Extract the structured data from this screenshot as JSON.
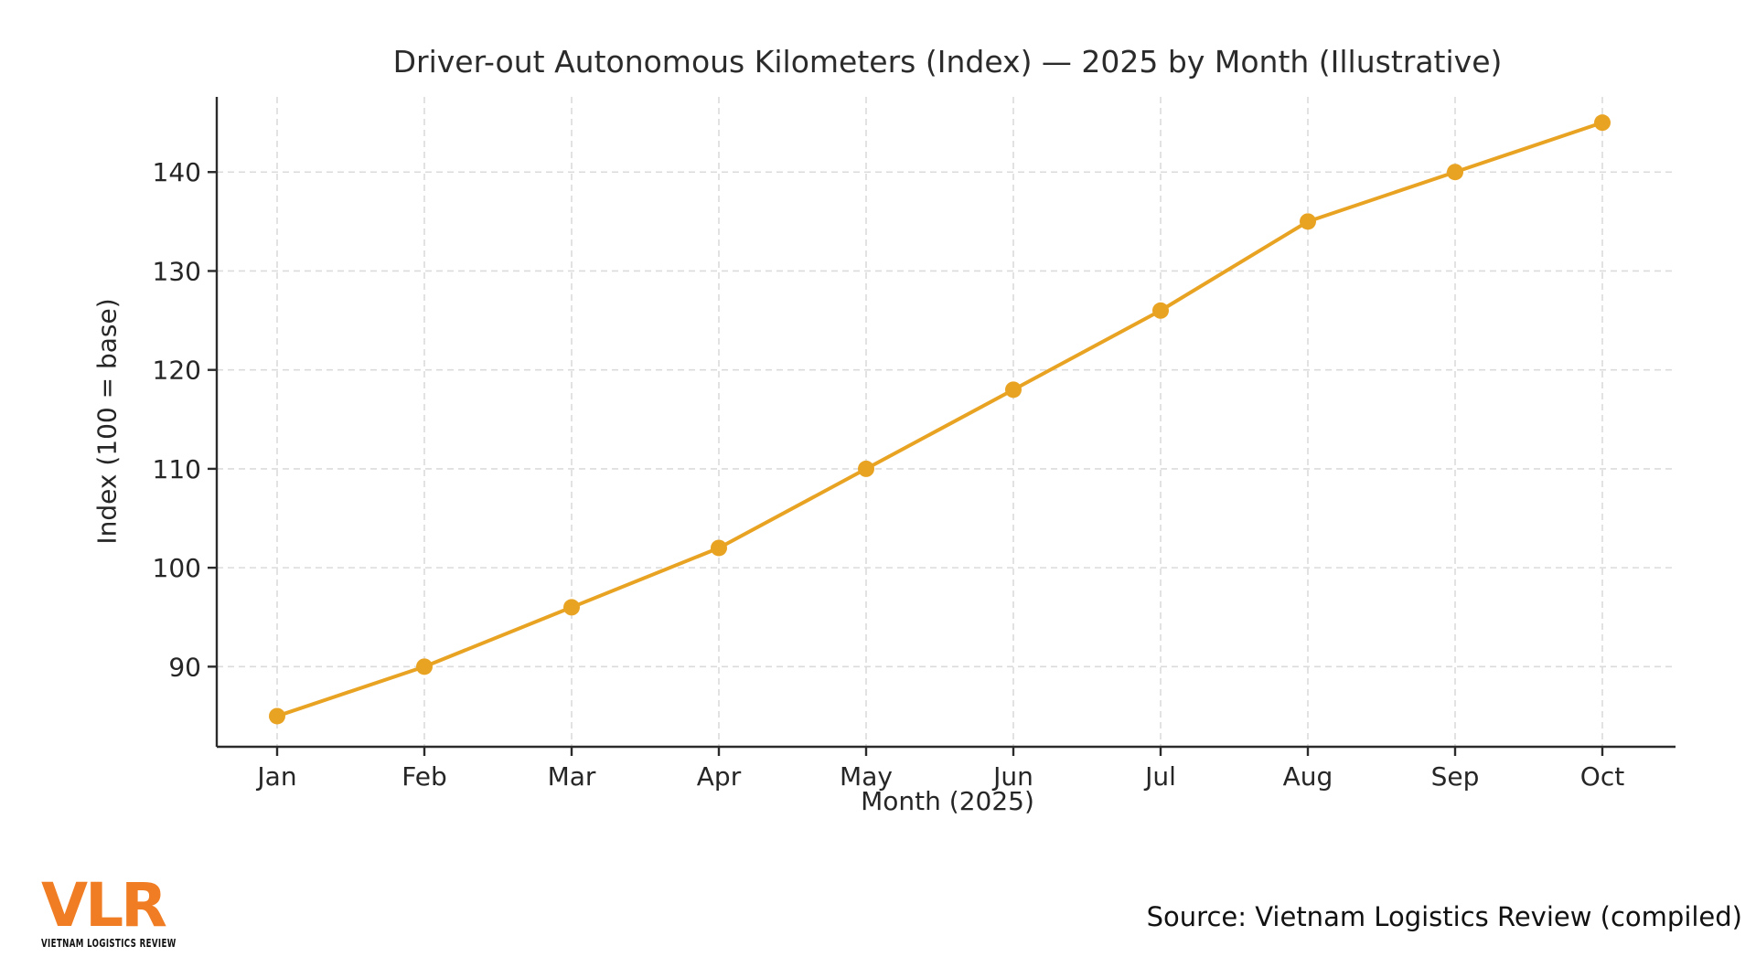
{
  "title": "Driver-out Autonomous Kilometers (Index) — 2025 by Month (Illustrative)",
  "chart_data": {
    "type": "line",
    "x": [
      "Jan",
      "Feb",
      "Mar",
      "Apr",
      "May",
      "Jun",
      "Jul",
      "Aug",
      "Sep",
      "Oct"
    ],
    "series": [
      {
        "name": "Driver-out autonomous kilometers index",
        "values": [
          85,
          90,
          96,
          102,
          110,
          118,
          126,
          135,
          140,
          145
        ]
      }
    ],
    "xlabel": "Month (2025)",
    "ylabel": "Index (100 = base)",
    "yticks": [
      90,
      100,
      110,
      120,
      130,
      140
    ],
    "ylim": [
      81.9,
      147.6
    ],
    "grid": true,
    "legend": "none",
    "line_color": "#E9A323",
    "marker": "circle",
    "grid_color": "#DBDBDB",
    "axis_color": "#2B2B2B",
    "text_color": "#262626"
  },
  "footer": {
    "logo": {
      "abbr": "VLR",
      "tagline": "VIETNAM LOGISTICS REVIEW",
      "color": "#F07D23"
    },
    "source": "Source: Vietnam Logistics Review (compiled)"
  }
}
